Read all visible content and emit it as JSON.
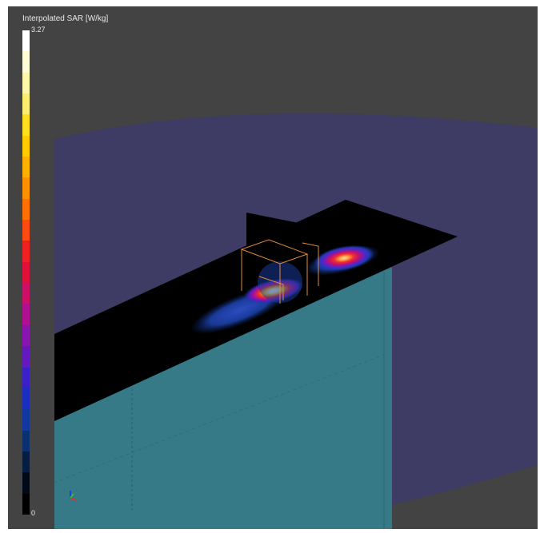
{
  "colorbar": {
    "title": "Interpolated SAR [W/kg]",
    "max_label": "3.27",
    "min_label": "0",
    "colors": [
      "#ffffff",
      "#fffcd8",
      "#fff7a8",
      "#ffef70",
      "#ffe020",
      "#ffcc00",
      "#ffb000",
      "#ff9000",
      "#ff7000",
      "#ff4a10",
      "#f02020",
      "#e0103a",
      "#cc1066",
      "#b01090",
      "#8a14b0",
      "#6418c0",
      "#3a20c8",
      "#1b2ec0",
      "#1038a0",
      "#0a3070",
      "#061c40",
      "#020a18",
      "#000000"
    ]
  },
  "scene": {
    "background": "#434343",
    "phantom_wall_color": "#3e3b64",
    "liquid_color": "#357a86",
    "flat_plane_color": "#000000"
  }
}
